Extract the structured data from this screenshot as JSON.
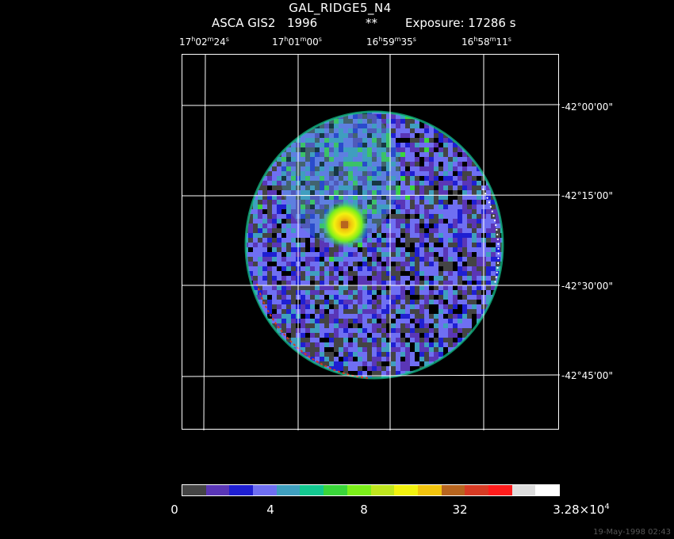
{
  "title": "GAL_RIDGE5_N4",
  "subtitle": {
    "instrument": "ASCA GIS2",
    "year": "1996",
    "flag": "**",
    "exposure": "Exposure: 17286 s"
  },
  "ra_labels": [
    {
      "h": "17",
      "m": "02",
      "s": "24"
    },
    {
      "h": "17",
      "m": "01",
      "s": "00"
    },
    {
      "h": "16",
      "m": "59",
      "s": "35"
    },
    {
      "h": "16",
      "m": "58",
      "s": "11"
    }
  ],
  "dec_labels": [
    "-42°00'00\"",
    "-42°15'00\"",
    "-42°30'00\"",
    "-42°45'00\""
  ],
  "colorbar": {
    "colors": [
      "#444444",
      "#5a36b6",
      "#1f1fd2",
      "#6f6ff2",
      "#3f9fbf",
      "#13c890",
      "#3ad63a",
      "#7cef1a",
      "#bfe61f",
      "#f2f20f",
      "#f2c40e",
      "#b7651f",
      "#d73b24",
      "#ff1c1c",
      "#dddddd",
      "#ffffff"
    ],
    "labels": [
      "0",
      "4",
      "8",
      "32"
    ],
    "max_mantissa": "3.28×10",
    "max_exponent": "4"
  },
  "datestamp": "19-May-1998 02:43"
}
